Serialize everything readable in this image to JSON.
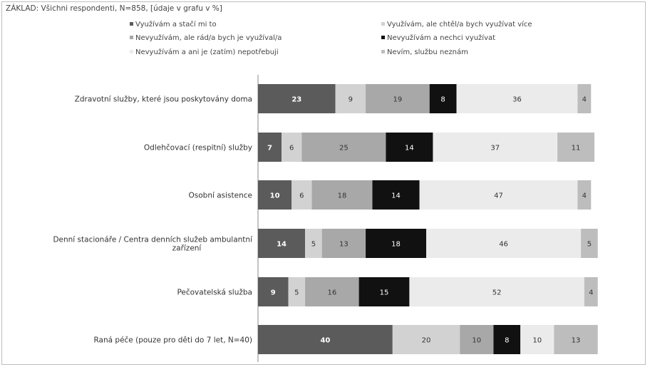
{
  "chart_data": {
    "type": "bar",
    "orientation": "horizontal",
    "stacked": true,
    "note": "ZÁKLAD: Všichni respondenti, N=858, [údaje v grafu v %]",
    "legend_position": "top",
    "categories": [
      "Zdravotní služby, které jsou poskytovány doma",
      "Odlehčovací (respitní) služby",
      "Osobní asistence",
      "Denní stacionáře / Centra denních služeb ambulantní zařízení",
      "Pečovatelská služba",
      "Raná péče (pouze pro děti do 7 let, N=40)"
    ],
    "category_lines": [
      [
        "Zdravotní služby, které jsou poskytovány doma"
      ],
      [
        "Odlehčovací (respitní) služby"
      ],
      [
        "Osobní asistence"
      ],
      [
        "Denní stacionáře / Centra denních služeb ambulantní",
        "zařízení"
      ],
      [
        "Pečovatelská služba"
      ],
      [
        "Raná péče (pouze pro děti do 7 let, N=40)"
      ]
    ],
    "series": [
      {
        "name": "Využívám a stačí mi to",
        "color": "#5b5b5b",
        "label_color": "#ffffff",
        "label_bold": true,
        "values": [
          23,
          7,
          10,
          14,
          9,
          40
        ]
      },
      {
        "name": "Využívám, ale chtěl/a bych využívat více",
        "color": "#d2d2d2",
        "label_color": "#333333",
        "label_bold": false,
        "values": [
          9,
          6,
          6,
          5,
          5,
          20
        ]
      },
      {
        "name": "Nevyužívám, ale rád/a bych je využíval/a",
        "color": "#a8a8a8",
        "label_color": "#333333",
        "label_bold": false,
        "values": [
          19,
          25,
          18,
          13,
          16,
          10
        ]
      },
      {
        "name": "Nevyužívám a nechci využívat",
        "color": "#111111",
        "label_color": "#ffffff",
        "label_bold": false,
        "values": [
          8,
          14,
          14,
          18,
          15,
          8
        ]
      },
      {
        "name": "Nevyužívám a ani je (zatím) nepotřebuji",
        "color": "#ebebeb",
        "label_color": "#333333",
        "label_bold": false,
        "values": [
          36,
          37,
          47,
          46,
          52,
          10
        ]
      },
      {
        "name": "Nevím, službu neznám",
        "color": "#bdbdbd",
        "label_color": "#333333",
        "label_bold": false,
        "values": [
          4,
          11,
          4,
          5,
          4,
          13
        ]
      }
    ],
    "legend_order": [
      0,
      1,
      2,
      3,
      4,
      5
    ],
    "xlim": [
      0,
      100
    ]
  }
}
